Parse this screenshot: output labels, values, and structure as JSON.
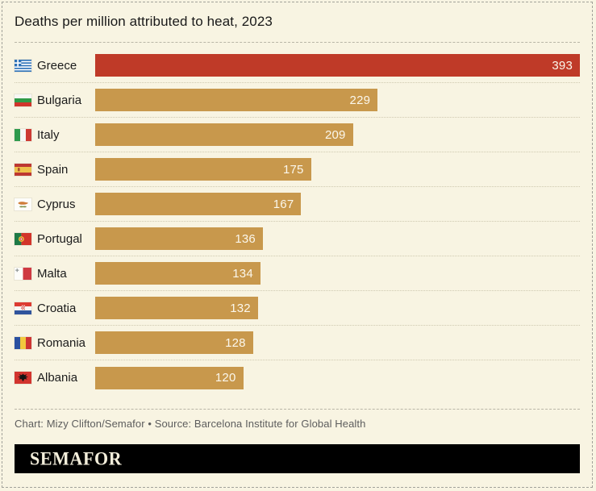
{
  "title": "Deaths per million attributed to heat, 2023",
  "colors": {
    "background": "#f8f4e2",
    "highlight_bar": "#bf3a28",
    "default_bar": "#c8984c",
    "value_label": "#fbf7ec",
    "logo_background": "#000000",
    "logo_text": "#f3eedb"
  },
  "chart_data": {
    "type": "bar",
    "orientation": "horizontal",
    "title": "Deaths per million attributed to heat, 2023",
    "categories": [
      "Greece",
      "Bulgaria",
      "Italy",
      "Spain",
      "Cyprus",
      "Portugal",
      "Malta",
      "Croatia",
      "Romania",
      "Albania"
    ],
    "values": [
      393,
      229,
      209,
      175,
      167,
      136,
      134,
      132,
      128,
      120
    ],
    "xlim": [
      0,
      393
    ],
    "highlighted_category": "Greece",
    "value_labels": "inside-right",
    "grid": false,
    "legend": false
  },
  "rows": [
    {
      "country": "Greece",
      "value": 393,
      "flag": "greece-flag-icon",
      "highlight": true
    },
    {
      "country": "Bulgaria",
      "value": 229,
      "flag": "bulgaria-flag-icon",
      "highlight": false
    },
    {
      "country": "Italy",
      "value": 209,
      "flag": "italy-flag-icon",
      "highlight": false
    },
    {
      "country": "Spain",
      "value": 175,
      "flag": "spain-flag-icon",
      "highlight": false
    },
    {
      "country": "Cyprus",
      "value": 167,
      "flag": "cyprus-flag-icon",
      "highlight": false
    },
    {
      "country": "Portugal",
      "value": 136,
      "flag": "portugal-flag-icon",
      "highlight": false
    },
    {
      "country": "Malta",
      "value": 134,
      "flag": "malta-flag-icon",
      "highlight": false
    },
    {
      "country": "Croatia",
      "value": 132,
      "flag": "croatia-flag-icon",
      "highlight": false
    },
    {
      "country": "Romania",
      "value": 128,
      "flag": "romania-flag-icon",
      "highlight": false
    },
    {
      "country": "Albania",
      "value": 120,
      "flag": "albania-flag-icon",
      "highlight": false
    }
  ],
  "footer": {
    "credit": "Chart: Mizy Clifton/Semafor • Source: Barcelona Institute for Global Health",
    "logo": "SEMAFOR"
  }
}
